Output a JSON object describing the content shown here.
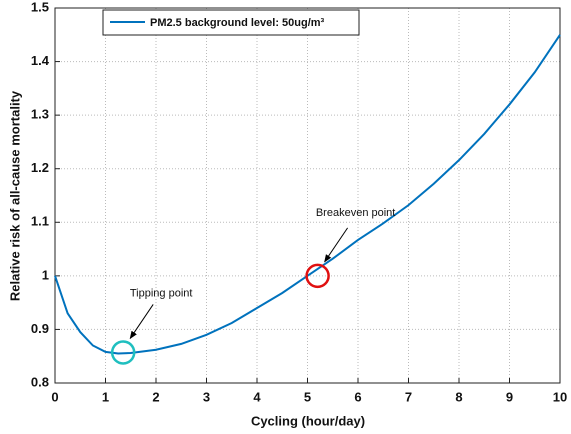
{
  "chart_data": {
    "type": "line",
    "xlabel": "Cycling (hour/day)",
    "ylabel": "Relative risk of all-cause mortality",
    "x": [
      0,
      0.25,
      0.5,
      0.75,
      1,
      1.25,
      1.5,
      2,
      2.5,
      3,
      3.5,
      4,
      4.5,
      5,
      5.5,
      6,
      6.5,
      7,
      7.5,
      8,
      8.5,
      9,
      9.5,
      10
    ],
    "series": [
      {
        "name": "PM2.5 background level: 50ug/m³",
        "color": "#0072bd",
        "values": [
          1.0,
          0.93,
          0.895,
          0.87,
          0.858,
          0.855,
          0.856,
          0.862,
          0.873,
          0.89,
          0.912,
          0.94,
          0.968,
          1.0,
          1.032,
          1.067,
          1.098,
          1.132,
          1.172,
          1.216,
          1.265,
          1.32,
          1.38,
          1.45
        ]
      }
    ],
    "annotations": [
      {
        "text": "Tipping point",
        "x": 1.35,
        "y": 0.857,
        "color": "#1fbfbf"
      },
      {
        "text": "Breakeven point",
        "x": 5.2,
        "y": 1.0,
        "color": "#e01010"
      }
    ],
    "xlim": [
      0,
      10
    ],
    "xticks": [
      0,
      1,
      2,
      3,
      4,
      5,
      6,
      7,
      8,
      9,
      10
    ],
    "ylim": [
      0.8,
      1.5
    ],
    "yticks": [
      0.8,
      0.9,
      1,
      1.1,
      1.2,
      1.3,
      1.4,
      1.5
    ],
    "grid": true,
    "legend": "top-left"
  }
}
